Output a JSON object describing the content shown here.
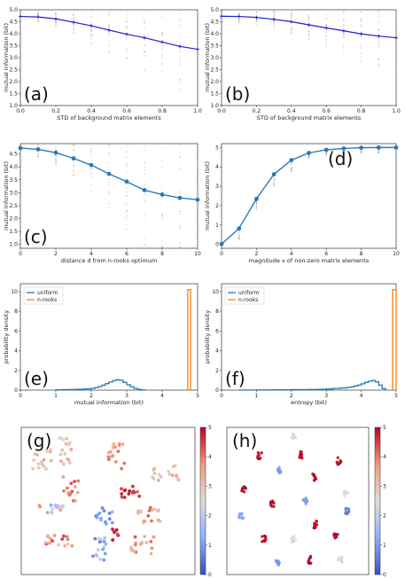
{
  "colors": {
    "line_dark": "#1f1fd0",
    "line_blue": "#2a7ab8",
    "uniform": "#1f77b4",
    "nrooks": "#ff7f0e",
    "scatter_gray": "#9a9a9a"
  },
  "chart_data": [
    {
      "panel": "(a)",
      "type": "line",
      "xlabel": "STD of background matrix elements",
      "ylabel": "mutual information (bit)",
      "xlim": [
        0,
        1.0
      ],
      "ylim": [
        1.0,
        5.0
      ],
      "xticks": [
        "0.0",
        "0.2",
        "0.4",
        "0.6",
        "0.8",
        "1.0"
      ],
      "yticks": [
        "1.0",
        "1.5",
        "2.0",
        "2.5",
        "3.0",
        "3.5",
        "4.0",
        "4.5",
        "5.0"
      ],
      "marker": false,
      "x": [
        0,
        0.1,
        0.2,
        0.3,
        0.4,
        0.5,
        0.6,
        0.7,
        0.8,
        0.9,
        1.0
      ],
      "y": [
        4.72,
        4.7,
        4.62,
        4.48,
        4.33,
        4.15,
        3.98,
        3.83,
        3.65,
        3.47,
        3.35
      ]
    },
    {
      "panel": "(b)",
      "type": "line",
      "xlabel": "STD of background matrix elements",
      "ylabel": "mutual information (bit)",
      "xlim": [
        0,
        1.0
      ],
      "ylim": [
        1.0,
        5.0
      ],
      "xticks": [
        "0.0",
        "0.2",
        "0.4",
        "0.6",
        "0.8",
        "1.0"
      ],
      "yticks": [
        "1.0",
        "1.5",
        "2.0",
        "2.5",
        "3.0",
        "3.5",
        "4.0",
        "4.5",
        "5.0"
      ],
      "marker": false,
      "x": [
        0,
        0.1,
        0.2,
        0.3,
        0.4,
        0.5,
        0.6,
        0.7,
        0.8,
        0.9,
        1.0
      ],
      "y": [
        4.73,
        4.72,
        4.68,
        4.6,
        4.5,
        4.37,
        4.24,
        4.12,
        3.99,
        3.9,
        3.83
      ]
    },
    {
      "panel": "(c)",
      "type": "line",
      "xlabel": "distance d from n-rooks optimum",
      "ylabel": "mutual information (bit)",
      "xlim": [
        0,
        10
      ],
      "ylim": [
        0.85,
        4.9
      ],
      "xticks": [
        "0",
        "2",
        "4",
        "6",
        "8",
        "10"
      ],
      "yticks": [
        "1.0",
        "1.5",
        "2.0",
        "2.5",
        "3.0",
        "3.5",
        "4.0",
        "4.5"
      ],
      "marker": true,
      "x": [
        0,
        1,
        2,
        3,
        4,
        5,
        6,
        7,
        8,
        9,
        10
      ],
      "y": [
        4.73,
        4.68,
        4.55,
        4.33,
        4.07,
        3.73,
        3.43,
        3.1,
        2.93,
        2.8,
        2.73
      ]
    },
    {
      "panel": "(d)",
      "type": "line",
      "xlabel": "magnitude v of non-zero matrix elements",
      "ylabel": "mutual information (bit)",
      "xlim": [
        0,
        10
      ],
      "ylim": [
        -0.2,
        5.2
      ],
      "xticks": [
        "0",
        "2",
        "4",
        "6",
        "8",
        "10"
      ],
      "yticks": [
        "0",
        "1",
        "2",
        "3",
        "4",
        "5"
      ],
      "marker": true,
      "x": [
        0,
        1,
        2,
        3,
        4,
        5,
        6,
        7,
        8,
        9,
        10
      ],
      "y": [
        0.02,
        0.82,
        2.35,
        3.62,
        4.35,
        4.72,
        4.88,
        4.95,
        4.99,
        5.0,
        5.0
      ]
    },
    {
      "panel": "(e)",
      "type": "histogram",
      "xlabel": "mutual information (bit)",
      "ylabel": "probability density",
      "xlim": [
        0,
        5
      ],
      "ylim": [
        0,
        10.8
      ],
      "xticks": [
        "0",
        "1",
        "2",
        "3",
        "4",
        "5"
      ],
      "yticks": [
        "0",
        "2",
        "4",
        "6",
        "8",
        "10"
      ],
      "legend": [
        "uniform",
        "n-rooks"
      ],
      "uniform": {
        "bins": [
          1.0,
          1.2,
          1.4,
          1.6,
          1.8,
          2.0,
          2.1,
          2.2,
          2.3,
          2.4,
          2.5,
          2.6,
          2.7,
          2.8,
          2.9,
          3.0,
          3.1,
          3.2,
          3.3,
          3.4,
          3.5
        ],
        "values": [
          0.03,
          0.05,
          0.07,
          0.09,
          0.13,
          0.18,
          0.26,
          0.36,
          0.5,
          0.66,
          0.82,
          0.97,
          1.05,
          1.0,
          0.78,
          0.55,
          0.35,
          0.18,
          0.08,
          0.03
        ]
      },
      "nrooks": {
        "bins": [
          4.72,
          4.8
        ],
        "values": [
          10.2
        ]
      }
    },
    {
      "panel": "(f)",
      "type": "histogram",
      "xlabel": "entropy (bit)",
      "ylabel": "probability density",
      "xlim": [
        0,
        5
      ],
      "ylim": [
        0,
        10.8
      ],
      "xticks": [
        "0",
        "1",
        "2",
        "3",
        "4",
        "5"
      ],
      "yticks": [
        "0",
        "2",
        "4",
        "6",
        "8",
        "10"
      ],
      "legend": [
        "uniform",
        "n-rooks"
      ],
      "uniform": {
        "bins": [
          0.5,
          1.0,
          1.5,
          2.0,
          2.5,
          2.8,
          3.0,
          3.2,
          3.4,
          3.6,
          3.7,
          3.8,
          3.9,
          4.0,
          4.1,
          4.2,
          4.3,
          4.4,
          4.5,
          4.6,
          4.7
        ],
        "values": [
          0.01,
          0.02,
          0.03,
          0.05,
          0.06,
          0.09,
          0.12,
          0.17,
          0.22,
          0.28,
          0.34,
          0.42,
          0.52,
          0.64,
          0.78,
          0.9,
          0.98,
          0.85,
          0.5,
          0.15
        ]
      },
      "nrooks": {
        "bins": [
          4.9,
          5.0
        ],
        "values": [
          10.2
        ]
      }
    },
    {
      "panel": "(g)",
      "type": "scatter",
      "colorbar_ticks": [
        "0",
        "1",
        "2",
        "3",
        "4",
        "5"
      ],
      "clusters": [
        {
          "cx": 0.12,
          "cy": 0.22,
          "dx": 0.06,
          "dy": 0.08,
          "v": [
            2.8,
            3.6
          ],
          "n": 16
        },
        {
          "cx": 0.26,
          "cy": 0.17,
          "dx": 0.04,
          "dy": 0.1,
          "v": [
            2.6,
            3.6
          ],
          "n": 16
        },
        {
          "cx": 0.55,
          "cy": 0.18,
          "dx": 0.05,
          "dy": 0.11,
          "v": [
            3.2,
            4.2
          ],
          "n": 16
        },
        {
          "cx": 0.83,
          "cy": 0.31,
          "dx": 0.08,
          "dy": 0.05,
          "v": [
            2.8,
            3.6
          ],
          "n": 16
        },
        {
          "cx": 0.28,
          "cy": 0.42,
          "dx": 0.05,
          "dy": 0.09,
          "v": [
            3.4,
            4.4
          ],
          "n": 16
        },
        {
          "cx": 0.63,
          "cy": 0.44,
          "dx": 0.06,
          "dy": 0.04,
          "v": [
            4.2,
            4.9
          ],
          "n": 14
        },
        {
          "cx": 0.17,
          "cy": 0.55,
          "dx": 0.08,
          "dy": 0.04,
          "v": [
            1.2,
            4.2
          ],
          "n": 16
        },
        {
          "cx": 0.48,
          "cy": 0.6,
          "dx": 0.05,
          "dy": 0.06,
          "v": [
            0.6,
            1.4
          ],
          "n": 16
        },
        {
          "cx": 0.74,
          "cy": 0.58,
          "dx": 0.08,
          "dy": 0.07,
          "v": [
            3.0,
            4.2
          ],
          "n": 16
        },
        {
          "cx": 0.22,
          "cy": 0.78,
          "dx": 0.08,
          "dy": 0.05,
          "v": [
            2.8,
            4.6
          ],
          "n": 16
        },
        {
          "cx": 0.45,
          "cy": 0.83,
          "dx": 0.04,
          "dy": 0.08,
          "v": [
            0.6,
            2.4
          ],
          "n": 16
        },
        {
          "cx": 0.7,
          "cy": 0.8,
          "dx": 0.07,
          "dy": 0.06,
          "v": [
            3.2,
            4.4
          ],
          "n": 16
        },
        {
          "cx": 0.54,
          "cy": 0.73,
          "dx": 0.02,
          "dy": 0.04,
          "v": [
            4.2,
            4.9
          ],
          "n": 6
        }
      ]
    },
    {
      "panel": "(h)",
      "type": "scatter",
      "colorbar_ticks": [
        "0",
        "1",
        "2",
        "3",
        "4",
        "5"
      ],
      "clusters": [
        {
          "cx": 0.47,
          "cy": 0.06,
          "dx": 0.015,
          "dy": 0.02,
          "v": [
            2.5,
            2.6
          ],
          "n": 10
        },
        {
          "cx": 0.23,
          "cy": 0.19,
          "dx": 0.015,
          "dy": 0.025,
          "v": [
            4.8,
            5.0
          ],
          "n": 10
        },
        {
          "cx": 0.52,
          "cy": 0.19,
          "dx": 0.015,
          "dy": 0.025,
          "v": [
            4.8,
            5.0
          ],
          "n": 10
        },
        {
          "cx": 0.79,
          "cy": 0.23,
          "dx": 0.015,
          "dy": 0.025,
          "v": [
            4.8,
            5.0
          ],
          "n": 10
        },
        {
          "cx": 0.37,
          "cy": 0.29,
          "dx": 0.015,
          "dy": 0.02,
          "v": [
            0.9,
            1.1
          ],
          "n": 10
        },
        {
          "cx": 0.62,
          "cy": 0.34,
          "dx": 0.015,
          "dy": 0.025,
          "v": [
            4.8,
            5.0
          ],
          "n": 10
        },
        {
          "cx": 0.12,
          "cy": 0.42,
          "dx": 0.015,
          "dy": 0.02,
          "v": [
            4.8,
            5.0
          ],
          "n": 10
        },
        {
          "cx": 0.84,
          "cy": 0.45,
          "dx": 0.015,
          "dy": 0.02,
          "v": [
            2.5,
            2.6
          ],
          "n": 10
        },
        {
          "cx": 0.32,
          "cy": 0.52,
          "dx": 0.015,
          "dy": 0.02,
          "v": [
            4.8,
            5.0
          ],
          "n": 10
        },
        {
          "cx": 0.55,
          "cy": 0.5,
          "dx": 0.015,
          "dy": 0.02,
          "v": [
            0.9,
            1.1
          ],
          "n": 10
        },
        {
          "cx": 0.1,
          "cy": 0.6,
          "dx": 0.015,
          "dy": 0.02,
          "v": [
            1.0,
            1.2
          ],
          "n": 10
        },
        {
          "cx": 0.85,
          "cy": 0.57,
          "dx": 0.015,
          "dy": 0.02,
          "v": [
            0.5,
            0.8
          ],
          "n": 10
        },
        {
          "cx": 0.62,
          "cy": 0.66,
          "dx": 0.015,
          "dy": 0.025,
          "v": [
            4.8,
            5.0
          ],
          "n": 10
        },
        {
          "cx": 0.26,
          "cy": 0.76,
          "dx": 0.015,
          "dy": 0.025,
          "v": [
            4.8,
            5.0
          ],
          "n": 10
        },
        {
          "cx": 0.47,
          "cy": 0.76,
          "dx": 0.015,
          "dy": 0.02,
          "v": [
            2.5,
            2.6
          ],
          "n": 10
        },
        {
          "cx": 0.77,
          "cy": 0.74,
          "dx": 0.015,
          "dy": 0.025,
          "v": [
            4.8,
            5.0
          ],
          "n": 10
        },
        {
          "cx": 0.58,
          "cy": 0.9,
          "dx": 0.015,
          "dy": 0.025,
          "v": [
            4.8,
            5.0
          ],
          "n": 10
        },
        {
          "cx": 0.36,
          "cy": 0.92,
          "dx": 0.015,
          "dy": 0.02,
          "v": [
            0.8,
            1.0
          ],
          "n": 10
        },
        {
          "cx": 0.8,
          "cy": 0.9,
          "dx": 0.015,
          "dy": 0.02,
          "v": [
            2.5,
            2.6
          ],
          "n": 10
        }
      ]
    }
  ]
}
